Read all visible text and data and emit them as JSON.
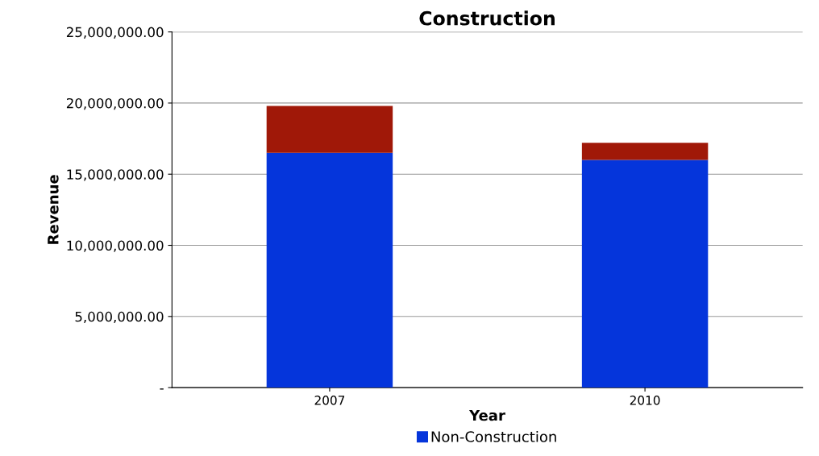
{
  "chart_data": {
    "type": "bar",
    "title": "Construction",
    "xlabel": "Year",
    "ylabel": "Revenue",
    "categories": [
      "2007",
      "2010"
    ],
    "stacked": true,
    "series": [
      {
        "name": "Non-Construction",
        "color": "#0535db",
        "values": [
          16500000,
          16000000
        ]
      },
      {
        "color": "#a01808",
        "values": [
          3300000,
          1200000
        ]
      }
    ],
    "ylim": [
      0,
      25000000
    ],
    "yticks": [
      {
        "value": 0,
        "label": "-"
      },
      {
        "value": 5000000,
        "label": "5,000,000.00"
      },
      {
        "value": 10000000,
        "label": "10,000,000.00"
      },
      {
        "value": 15000000,
        "label": "15,000,000.00"
      },
      {
        "value": 20000000,
        "label": "20,000,000.00"
      },
      {
        "value": 25000000,
        "label": "25,000,000.00"
      }
    ],
    "grid": "y",
    "legend": "bottom"
  }
}
